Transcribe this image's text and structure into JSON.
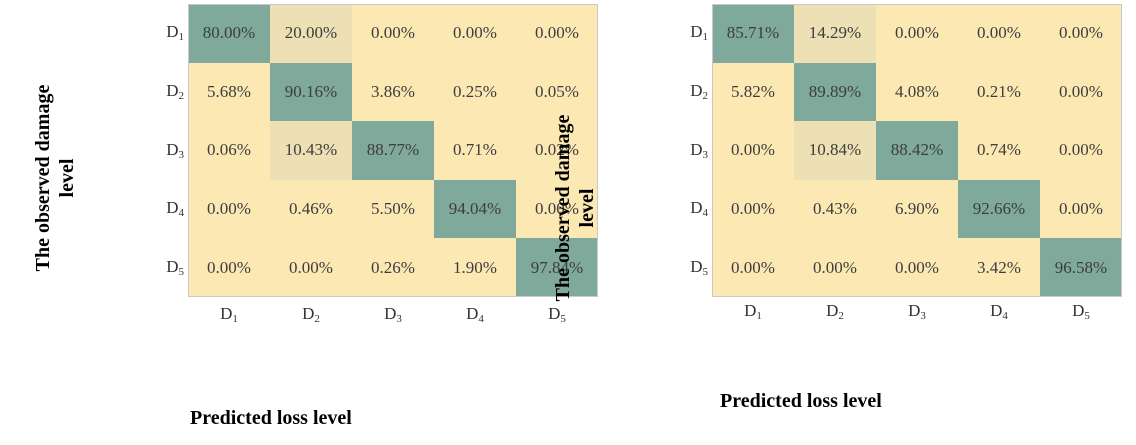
{
  "colors": {
    "high": "#7fa99b",
    "medium": "#ece0b4",
    "low": "#fce8b3"
  },
  "chart_data": [
    {
      "type": "heatmap",
      "ylabel_lines": [
        "The observed damage",
        "level"
      ],
      "xlabel": "Predicted loss level",
      "row_labels": [
        "D1",
        "D2",
        "D3",
        "D4",
        "D5"
      ],
      "col_labels": [
        "D1",
        "D2",
        "D3",
        "D4",
        "D5"
      ],
      "cells": [
        [
          "80.00%",
          "20.00%",
          "0.00%",
          "0.00%",
          "0.00%"
        ],
        [
          "5.68%",
          "90.16%",
          "3.86%",
          "0.25%",
          "0.05%"
        ],
        [
          "0.06%",
          "10.43%",
          "88.77%",
          "0.71%",
          "0.02%"
        ],
        [
          "0.00%",
          "0.46%",
          "5.50%",
          "94.04%",
          "0.00%"
        ],
        [
          "0.00%",
          "0.00%",
          "0.26%",
          "1.90%",
          "97.84%"
        ]
      ]
    },
    {
      "type": "heatmap",
      "ylabel_lines": [
        "The observed damage",
        "level"
      ],
      "xlabel": "Predicted loss level",
      "row_labels": [
        "D1",
        "D2",
        "D3",
        "D4",
        "D5"
      ],
      "col_labels": [
        "D1",
        "D2",
        "D3",
        "D4",
        "D5"
      ],
      "cells": [
        [
          "85.71%",
          "14.29%",
          "0.00%",
          "0.00%",
          "0.00%"
        ],
        [
          "5.82%",
          "89.89%",
          "4.08%",
          "0.21%",
          "0.00%"
        ],
        [
          "0.00%",
          "10.84%",
          "88.42%",
          "0.74%",
          "0.00%"
        ],
        [
          "0.00%",
          "0.43%",
          "6.90%",
          "92.66%",
          "0.00%"
        ],
        [
          "0.00%",
          "0.00%",
          "0.00%",
          "3.42%",
          "96.58%"
        ]
      ]
    }
  ]
}
